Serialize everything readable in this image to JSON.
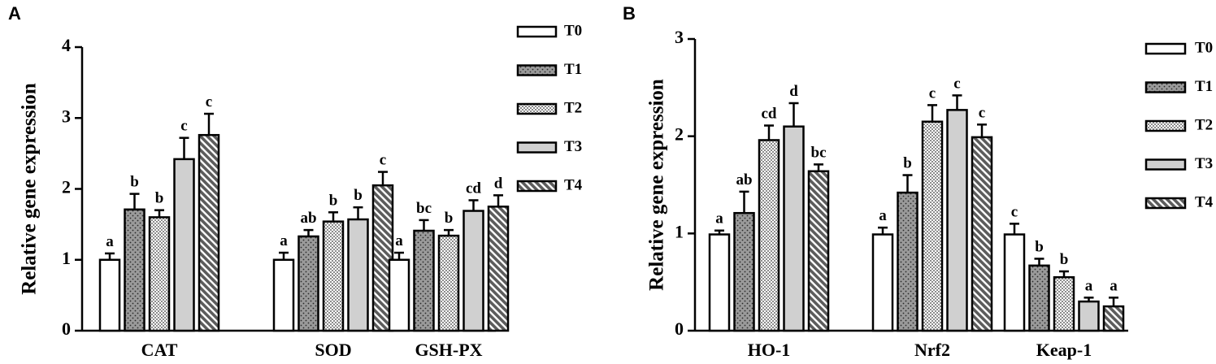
{
  "chart_data": [
    {
      "panel_label": "A",
      "type": "bar",
      "ylabel": "Relative gene expression",
      "xlabel": "",
      "ylim": [
        0,
        4
      ],
      "yticks": [
        "0",
        "1",
        "2",
        "3",
        "4"
      ],
      "categories": [
        "CAT",
        "SOD",
        "GSH-PX"
      ],
      "legend_position": "top-right",
      "series": [
        {
          "name": "T0",
          "values": [
            1.0,
            1.0,
            1.0
          ],
          "errors": [
            0.09,
            0.1,
            0.1
          ],
          "letters": [
            "a",
            "a",
            "a"
          ]
        },
        {
          "name": "T1",
          "values": [
            1.71,
            1.33,
            1.41
          ],
          "errors": [
            0.22,
            0.09,
            0.15
          ],
          "letters": [
            "b",
            "ab",
            "bc"
          ]
        },
        {
          "name": "T2",
          "values": [
            1.6,
            1.54,
            1.34
          ],
          "errors": [
            0.1,
            0.13,
            0.08
          ],
          "letters": [
            "b",
            "b",
            "b"
          ]
        },
        {
          "name": "T3",
          "values": [
            2.42,
            1.57,
            1.69
          ],
          "errors": [
            0.3,
            0.17,
            0.15
          ],
          "letters": [
            "c",
            "b",
            "cd"
          ]
        },
        {
          "name": "T4",
          "values": [
            2.76,
            2.05,
            1.75
          ],
          "errors": [
            0.3,
            0.19,
            0.16
          ],
          "letters": [
            "c",
            "c",
            "d"
          ]
        }
      ]
    },
    {
      "panel_label": "B",
      "type": "bar",
      "ylabel": "Relative gene expression",
      "xlabel": "",
      "ylim": [
        0,
        3
      ],
      "yticks": [
        "0",
        "1",
        "2",
        "3"
      ],
      "categories": [
        "HO-1",
        "Nrf2",
        "Keap-1"
      ],
      "legend_position": "top-right",
      "series": [
        {
          "name": "T0",
          "values": [
            0.99,
            0.99,
            0.99
          ],
          "errors": [
            0.04,
            0.07,
            0.11
          ],
          "letters": [
            "a",
            "a",
            "c"
          ]
        },
        {
          "name": "T1",
          "values": [
            1.21,
            1.42,
            0.67
          ],
          "errors": [
            0.22,
            0.18,
            0.07
          ],
          "letters": [
            "ab",
            "b",
            "b"
          ]
        },
        {
          "name": "T2",
          "values": [
            1.96,
            2.15,
            0.55
          ],
          "errors": [
            0.15,
            0.17,
            0.06
          ],
          "letters": [
            "cd",
            "c",
            "b"
          ]
        },
        {
          "name": "T3",
          "values": [
            2.1,
            2.27,
            0.3
          ],
          "errors": [
            0.24,
            0.15,
            0.04
          ],
          "letters": [
            "d",
            "c",
            "a"
          ]
        },
        {
          "name": "T4",
          "values": [
            1.64,
            1.99,
            0.25
          ],
          "errors": [
            0.07,
            0.13,
            0.09
          ],
          "letters": [
            "bc",
            "c",
            "a"
          ]
        }
      ]
    }
  ]
}
